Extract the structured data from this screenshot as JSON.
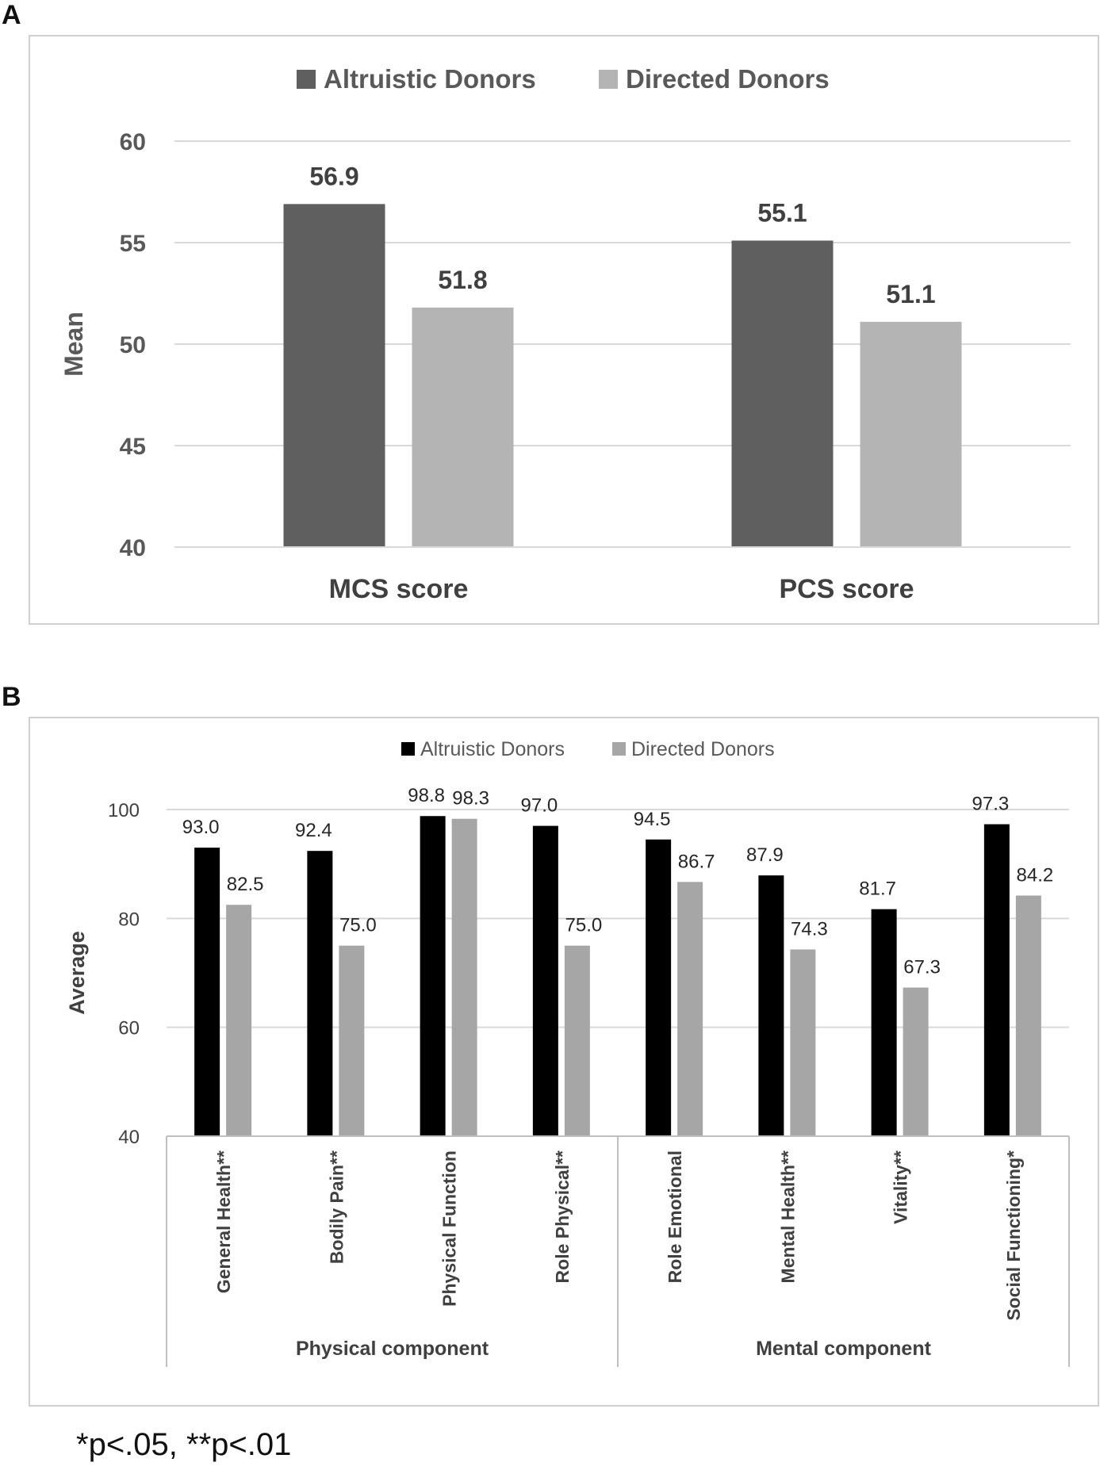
{
  "panels": {
    "a": "A",
    "b": "B"
  },
  "footnote": "*p<.05, **p<.01",
  "chart_data": [
    {
      "type": "bar",
      "ylabel": "Mean",
      "ylim": [
        40,
        60
      ],
      "yticks": [
        40,
        45,
        50,
        55,
        60
      ],
      "grid": true,
      "legend_position": "top-center",
      "categories": [
        "MCS score",
        "PCS score"
      ],
      "series": [
        {
          "name": "Altruistic Donors",
          "color": "#5f5f5f",
          "values": [
            56.9,
            55.1
          ],
          "labels": [
            "56.9",
            "55.1"
          ]
        },
        {
          "name": "Directed Donors",
          "color": "#b4b4b4",
          "values": [
            51.8,
            51.1
          ],
          "labels": [
            "51.8",
            "51.1"
          ]
        }
      ]
    },
    {
      "type": "bar",
      "ylabel": "Average",
      "ylim": [
        40,
        100
      ],
      "yticks": [
        40,
        60,
        80,
        100
      ],
      "grid": true,
      "legend_position": "top-center",
      "categories": [
        "General Health**",
        "Bodily Pain**",
        "Physical Function",
        "Role Physical**",
        "Role Emotional",
        "Mental Health**",
        "Vitality**",
        "Social Functioning*"
      ],
      "groups": [
        {
          "label": "Physical component",
          "count": 4
        },
        {
          "label": "Mental component",
          "count": 4
        }
      ],
      "series": [
        {
          "name": "Altruistic Donors",
          "color": "#000000",
          "values": [
            93.0,
            92.4,
            98.8,
            97.0,
            94.5,
            87.9,
            81.7,
            97.3
          ],
          "labels": [
            "93.0",
            "92.4",
            "98.8",
            "97.0",
            "94.5",
            "87.9",
            "81.7",
            "97.3"
          ]
        },
        {
          "name": "Directed Donors",
          "color": "#a6a6a6",
          "values": [
            82.5,
            75.0,
            98.3,
            75.0,
            86.7,
            74.3,
            67.3,
            84.2
          ],
          "labels": [
            "82.5",
            "75.0",
            "98.3",
            "75.0",
            "86.7",
            "74.3",
            "67.3",
            "84.2"
          ]
        }
      ]
    }
  ]
}
